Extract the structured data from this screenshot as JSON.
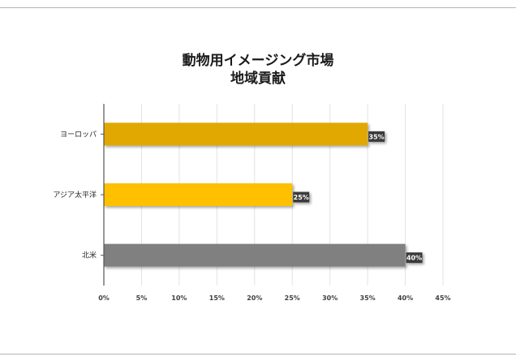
{
  "chart_data": {
    "type": "bar",
    "orientation": "horizontal",
    "title_lines": [
      "動物用イメージング市場",
      "地域貢献"
    ],
    "categories": [
      "ヨーロッパ",
      "アジア太平洋",
      "北米"
    ],
    "values": [
      35,
      25,
      40
    ],
    "data_labels": [
      "35%",
      "25%",
      "40%"
    ],
    "colors": [
      "#E0A800",
      "#FFC000",
      "#808080"
    ],
    "xlim": [
      0,
      45
    ],
    "xticks": [
      0,
      5,
      10,
      15,
      20,
      25,
      30,
      35,
      40,
      45
    ],
    "xtick_labels": [
      "0%",
      "5%",
      "10%",
      "15%",
      "20%",
      "25%",
      "30%",
      "35%",
      "40%",
      "45%"
    ],
    "grid": true,
    "legend": "none"
  }
}
